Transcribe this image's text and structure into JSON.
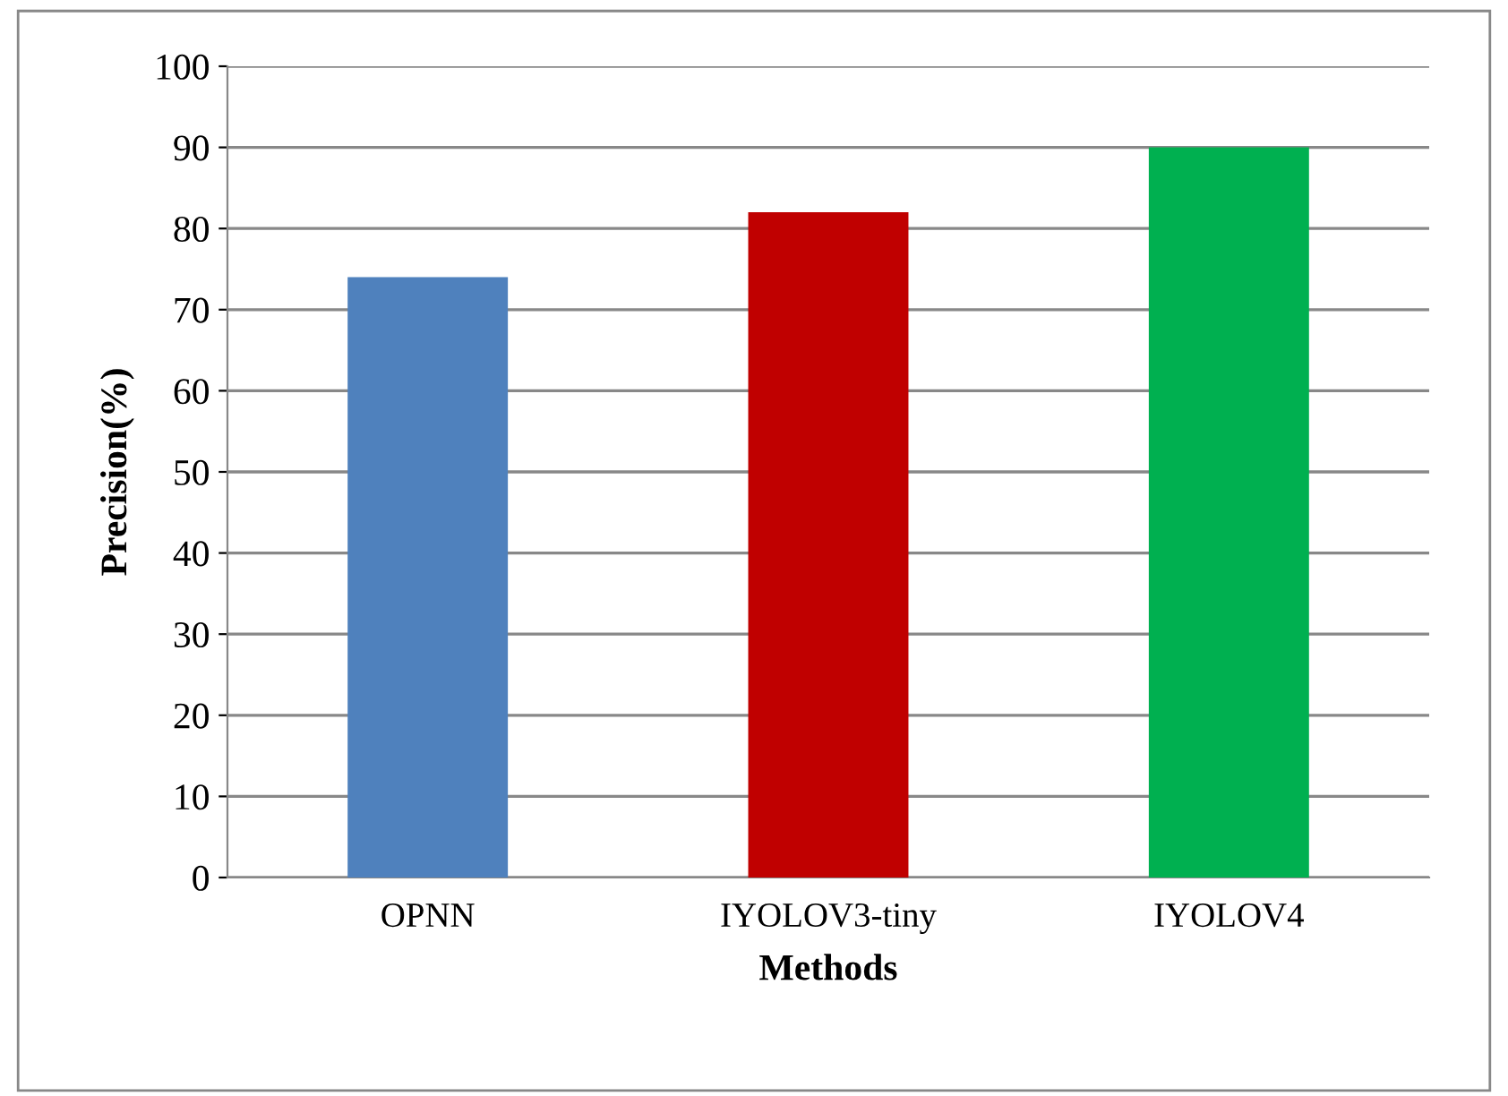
{
  "chart_data": {
    "type": "bar",
    "xlabel": "Methods",
    "ylabel": "Precision(%)",
    "categories": [
      "OPNN",
      "IYOLOV3-tiny",
      "IYOLOV4"
    ],
    "values": [
      74,
      82,
      90
    ],
    "colors": [
      "#4f81bd",
      "#c00000",
      "#00b050"
    ],
    "ylim": [
      0,
      100
    ],
    "yticks": [
      0,
      10,
      20,
      30,
      40,
      50,
      60,
      70,
      80,
      90,
      100
    ],
    "grid": "y",
    "legend": false
  }
}
